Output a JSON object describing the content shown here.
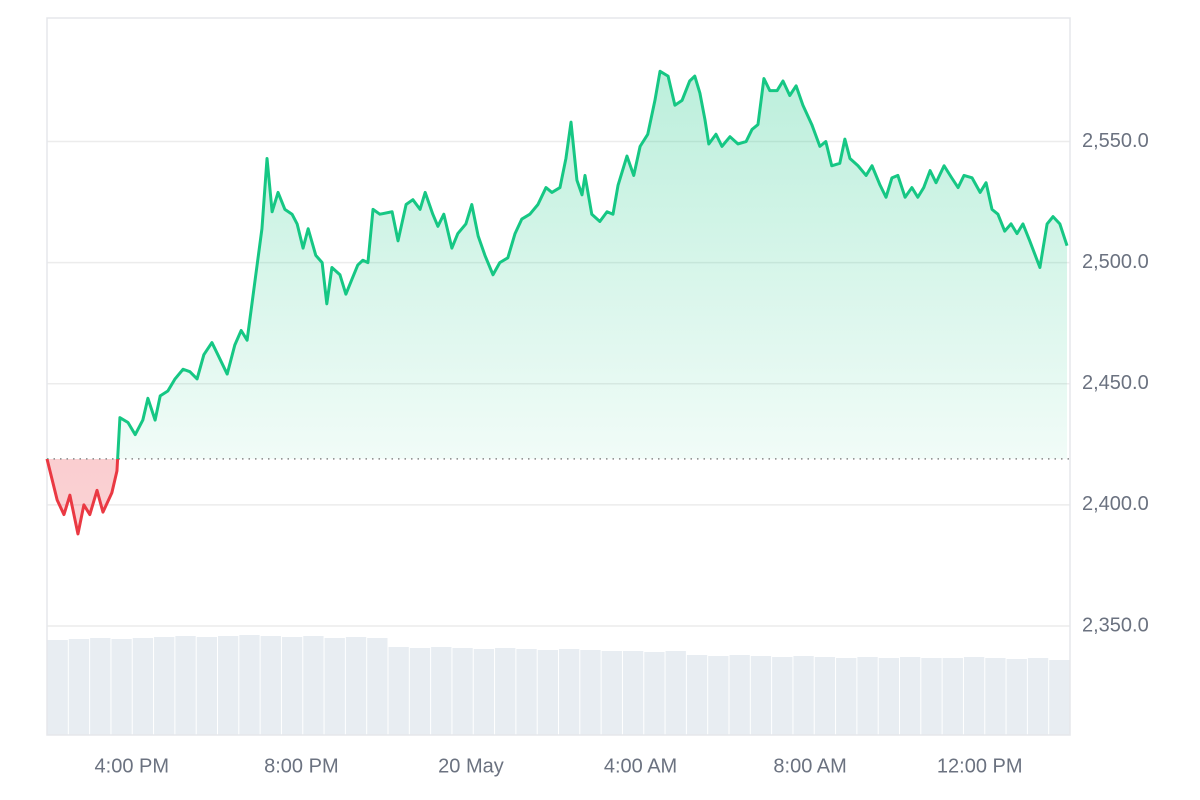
{
  "chart_data": {
    "type": "line",
    "x": [
      14.0,
      14.24,
      14.4,
      14.54,
      14.73,
      14.87,
      15.01,
      15.18,
      15.32,
      15.53,
      15.65,
      15.72,
      15.91,
      16.08,
      16.26,
      16.38,
      16.55,
      16.67,
      16.85,
      17.02,
      17.21,
      17.37,
      17.54,
      17.7,
      17.89,
      18.03,
      18.25,
      18.43,
      18.58,
      18.72,
      18.91,
      19.07,
      19.19,
      19.31,
      19.45,
      19.61,
      19.78,
      19.9,
      20.04,
      20.16,
      20.34,
      20.49,
      20.6,
      20.72,
      20.91,
      21.05,
      21.19,
      21.33,
      21.45,
      21.57,
      21.69,
      21.85,
      22.14,
      22.28,
      22.47,
      22.63,
      22.8,
      22.92,
      23.1,
      23.22,
      23.36,
      23.55,
      23.69,
      23.88,
      24.02,
      24.17,
      24.33,
      24.52,
      24.68,
      24.87,
      25.04,
      25.2,
      25.39,
      25.58,
      25.77,
      25.91,
      26.1,
      26.24,
      26.36,
      26.5,
      26.62,
      26.69,
      26.85,
      27.04,
      27.21,
      27.35,
      27.47,
      27.68,
      27.84,
      27.99,
      28.17,
      28.34,
      28.46,
      28.65,
      28.81,
      28.98,
      29.16,
      29.28,
      29.4,
      29.52,
      29.61,
      29.78,
      29.92,
      30.11,
      30.3,
      30.49,
      30.63,
      30.77,
      30.91,
      31.05,
      31.22,
      31.36,
      31.52,
      31.67,
      31.83,
      32.04,
      32.23,
      32.37,
      32.51,
      32.7,
      32.82,
      32.94,
      33.13,
      33.32,
      33.46,
      33.65,
      33.79,
      33.93,
      34.07,
      34.24,
      34.4,
      34.54,
      34.68,
      34.83,
      34.97,
      35.16,
      35.34,
      35.49,
      35.63,
      35.82,
      36.01,
      36.15,
      36.29,
      36.43,
      36.59,
      36.74,
      36.88,
      37.02,
      37.18,
      37.42,
      37.59,
      37.73,
      37.89,
      38.06
    ],
    "values": [
      2419,
      2402,
      2396,
      2404,
      2388,
      2400,
      2396,
      2406,
      2397,
      2405,
      2414,
      2436,
      2434,
      2429,
      2435,
      2444,
      2435,
      2445,
      2447,
      2452,
      2456,
      2455,
      2452,
      2462,
      2467,
      2462,
      2454,
      2466,
      2472,
      2468,
      2493,
      2514,
      2543,
      2521,
      2529,
      2522,
      2520,
      2516,
      2506,
      2514,
      2503,
      2500,
      2483,
      2498,
      2495,
      2487,
      2493,
      2499,
      2501,
      2500,
      2522,
      2520,
      2521,
      2509,
      2524,
      2526,
      2522,
      2529,
      2520,
      2515,
      2520,
      2506,
      2512,
      2516,
      2524,
      2511,
      2503,
      2495,
      2500,
      2502,
      2512,
      2518,
      2520,
      2524,
      2531,
      2529,
      2531,
      2543,
      2558,
      2534,
      2528,
      2536,
      2520,
      2517,
      2521,
      2520,
      2532,
      2544,
      2536,
      2548,
      2553,
      2567,
      2579,
      2577,
      2565,
      2567,
      2575,
      2577,
      2570,
      2559,
      2549,
      2553,
      2548,
      2552,
      2549,
      2550,
      2555,
      2557,
      2576,
      2571,
      2571,
      2575,
      2569,
      2573,
      2565,
      2557,
      2548,
      2550,
      2540,
      2541,
      2551,
      2543,
      2540,
      2536,
      2540,
      2532,
      2527,
      2535,
      2536,
      2527,
      2531,
      2527,
      2531,
      2538,
      2533,
      2540,
      2535,
      2531,
      2536,
      2535,
      2529,
      2533,
      2522,
      2520,
      2513,
      2516,
      2512,
      2516,
      2509,
      2498,
      2516,
      2519,
      2516,
      2507
    ],
    "baseline": 2419,
    "color_up": "#16c784",
    "color_down": "#ea3943",
    "volume": {
      "color": "#e8edf2",
      "values": [
        95,
        96,
        97,
        96,
        97,
        98,
        99,
        98,
        99,
        100,
        99,
        98,
        99,
        97,
        98,
        97,
        88,
        87,
        88,
        87,
        86,
        87,
        86,
        85,
        86,
        85,
        84,
        84,
        83,
        84,
        80,
        79,
        80,
        79,
        78,
        79,
        78,
        77,
        78,
        77,
        78,
        77,
        77,
        78,
        77,
        76,
        77,
        75
      ]
    },
    "xlim": [
      14,
      38.13
    ],
    "xticks": [
      {
        "value": 16,
        "label": "4:00 PM"
      },
      {
        "value": 20,
        "label": "8:00 PM"
      },
      {
        "value": 24,
        "label": "20 May"
      },
      {
        "value": 28,
        "label": "4:00 AM"
      },
      {
        "value": 32,
        "label": "8:00 AM"
      },
      {
        "value": 36,
        "label": "12:00 PM"
      }
    ],
    "ylim": [
      2305,
      2601
    ],
    "yticks": [
      {
        "value": 2350,
        "label": "2,350.0"
      },
      {
        "value": 2400,
        "label": "2,400.0"
      },
      {
        "value": 2450,
        "label": "2,450.0"
      },
      {
        "value": 2500,
        "label": "2,500.0"
      },
      {
        "value": 2550,
        "label": "2,550.0"
      }
    ],
    "grid": true
  }
}
